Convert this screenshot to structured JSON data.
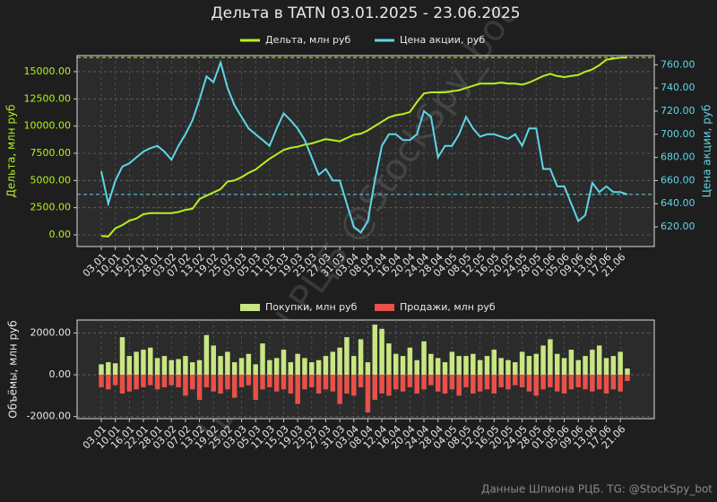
{
  "chart_data": [
    {
      "type": "line",
      "title": "Дельта в TATN 03.01.2025 - 23.06.2025",
      "ylabel": "Дельта, млн руб",
      "y2label": "Цена акции, руб",
      "categories": [
        "03.01",
        null,
        "10.01",
        null,
        "16.01",
        null,
        "22.01",
        null,
        "28.01",
        null,
        "03.02",
        null,
        "07.02",
        null,
        "13.02",
        null,
        "19.02",
        null,
        "25.02",
        null,
        "03.03",
        null,
        "05.03",
        null,
        "11.03",
        null,
        "15.03",
        null,
        "19.03",
        null,
        "23.03",
        null,
        "27.03",
        null,
        "31.03",
        null,
        "03.04",
        null,
        "08.04",
        null,
        "12.04",
        null,
        "16.04",
        null,
        "20.04",
        null,
        "24.04",
        null,
        "28.04",
        null,
        "04.05",
        null,
        "08.05",
        null,
        "12.05",
        null,
        "16.05",
        null,
        "20.05",
        null,
        "24.05",
        null,
        "28.05",
        null,
        "01.06",
        null,
        "05.06",
        null,
        "09.06",
        null,
        "13.06",
        null,
        "17.06",
        null,
        "21.06",
        null
      ],
      "ylim": [
        -1070,
        16480
      ],
      "yticks": [
        {
          "value": 0,
          "label": "0.00"
        },
        {
          "value": 2500,
          "label": "2500.00"
        },
        {
          "value": 5000,
          "label": "5000.00"
        },
        {
          "value": 7500,
          "label": "7500.00"
        },
        {
          "value": 10000,
          "label": "10000.00"
        },
        {
          "value": 12500,
          "label": "12500.00"
        },
        {
          "value": 15000,
          "label": "15000.00"
        }
      ],
      "y2lim": [
        603,
        768
      ],
      "y2ticks": [
        {
          "value": 620,
          "label": "620.00"
        },
        {
          "value": 640,
          "label": "640.00"
        },
        {
          "value": 660,
          "label": "660.00"
        },
        {
          "value": 680,
          "label": "680.00"
        },
        {
          "value": 700,
          "label": "700.00"
        },
        {
          "value": 720,
          "label": "720.00"
        },
        {
          "value": 740,
          "label": "740.00"
        },
        {
          "value": 760,
          "label": "760.00"
        }
      ],
      "grid": true,
      "legend": "top",
      "reference_lines": [
        {
          "axis": "y",
          "value": 16300,
          "color": "#b8f01f"
        },
        {
          "axis": "y2",
          "value": 648,
          "color": "#5ed6e6"
        }
      ],
      "series": [
        {
          "name": "Дельта, млн руб",
          "color": "#b8f01f",
          "axis": "y",
          "values": [
            -100,
            -150,
            600,
            900,
            1300,
            1500,
            1900,
            2000,
            2000,
            2000,
            2000,
            2100,
            2300,
            2400,
            3300,
            3600,
            3900,
            4200,
            4900,
            5000,
            5300,
            5700,
            6000,
            6500,
            7000,
            7400,
            7800,
            8000,
            8100,
            8300,
            8400,
            8600,
            8800,
            8700,
            8600,
            8900,
            9200,
            9300,
            9600,
            10000,
            10400,
            10800,
            11000,
            11100,
            11300,
            12200,
            13000,
            13100,
            13100,
            13100,
            13200,
            13300,
            13500,
            13700,
            13900,
            13900,
            13900,
            14000,
            13900,
            13900,
            13800,
            14000,
            14300,
            14600,
            14800,
            14600,
            14500,
            14600,
            14700,
            15000,
            15200,
            15600,
            16100,
            16200,
            16300,
            16300
          ]
        },
        {
          "name": "Цена акции, руб",
          "color": "#5ed6e6",
          "axis": "y2",
          "values": [
            668,
            640,
            660,
            672,
            675,
            680,
            685,
            688,
            690,
            685,
            678,
            690,
            700,
            712,
            730,
            750,
            745,
            762,
            740,
            725,
            715,
            705,
            700,
            695,
            690,
            705,
            718,
            712,
            705,
            695,
            680,
            665,
            670,
            660,
            660,
            640,
            620,
            615,
            625,
            660,
            690,
            700,
            700,
            695,
            695,
            700,
            720,
            715,
            680,
            690,
            690,
            700,
            715,
            705,
            698,
            700,
            700,
            698,
            696,
            700,
            690,
            705,
            705,
            670,
            670,
            655,
            655,
            640,
            625,
            630,
            658,
            650,
            655,
            650,
            650,
            648
          ]
        }
      ],
      "watermark": "ШПИОН РЦБ @StockSpy_bot"
    },
    {
      "type": "bar",
      "ylabel": "Объёмы, млн руб",
      "categories": [
        "03.01",
        null,
        "10.01",
        null,
        "16.01",
        null,
        "22.01",
        null,
        "28.01",
        null,
        "03.02",
        null,
        "07.02",
        null,
        "13.02",
        null,
        "19.02",
        null,
        "25.02",
        null,
        "03.03",
        null,
        "05.03",
        null,
        "11.03",
        null,
        "15.03",
        null,
        "19.03",
        null,
        "23.03",
        null,
        "27.03",
        null,
        "31.03",
        null,
        "03.04",
        null,
        "08.04",
        null,
        "12.04",
        null,
        "16.04",
        null,
        "20.04",
        null,
        "24.04",
        null,
        "28.04",
        null,
        "04.05",
        null,
        "08.05",
        null,
        "12.05",
        null,
        "16.05",
        null,
        "20.05",
        null,
        "24.05",
        null,
        "28.05",
        null,
        "01.06",
        null,
        "05.06",
        null,
        "09.06",
        null,
        "13.06",
        null,
        "17.06",
        null,
        "21.06",
        null
      ],
      "ylim": [
        -2100,
        2620
      ],
      "yticks": [
        {
          "value": -2000,
          "label": "-2000.00"
        },
        {
          "value": 0,
          "label": "0.00"
        },
        {
          "value": 2000,
          "label": "2000.00"
        }
      ],
      "grid": true,
      "legend": "top",
      "series": [
        {
          "name": "Покупки, млн руб",
          "color": "#c8e682",
          "values": [
            500,
            600,
            550,
            1800,
            900,
            1100,
            1200,
            1300,
            800,
            900,
            700,
            750,
            900,
            600,
            700,
            1900,
            1400,
            900,
            1100,
            600,
            800,
            1000,
            500,
            1500,
            700,
            800,
            1200,
            600,
            1000,
            800,
            600,
            700,
            900,
            1100,
            1300,
            1800,
            900,
            1700,
            600,
            2400,
            2200,
            1500,
            1000,
            900,
            1300,
            700,
            1600,
            1000,
            800,
            600,
            1100,
            900,
            900,
            1000,
            700,
            900,
            1200,
            800,
            700,
            600,
            1100,
            900,
            1000,
            1400,
            1700,
            1000,
            800,
            1200,
            700,
            900,
            1200,
            1400,
            800,
            900,
            1100,
            300
          ]
        },
        {
          "name": "Продажи, млн руб",
          "color": "#e8504a",
          "values": [
            -600,
            -700,
            -500,
            -900,
            -800,
            -700,
            -600,
            -500,
            -700,
            -600,
            -500,
            -600,
            -1000,
            -700,
            -1200,
            -600,
            -800,
            -900,
            -700,
            -1100,
            -600,
            -500,
            -1200,
            -700,
            -600,
            -800,
            -700,
            -900,
            -1400,
            -700,
            -600,
            -900,
            -700,
            -800,
            -1400,
            -900,
            -1000,
            -600,
            -1800,
            -1200,
            -900,
            -1000,
            -700,
            -800,
            -600,
            -900,
            -700,
            -500,
            -800,
            -900,
            -700,
            -1000,
            -600,
            -900,
            -800,
            -700,
            -900,
            -600,
            -700,
            -500,
            -600,
            -800,
            -1000,
            -700,
            -600,
            -800,
            -900,
            -700,
            -600,
            -700,
            -800,
            -700,
            -900,
            -700,
            -800,
            -300
          ]
        }
      ],
      "footer": "Данные Шпиона РЦБ. TG: @StockSpy_bot"
    }
  ]
}
